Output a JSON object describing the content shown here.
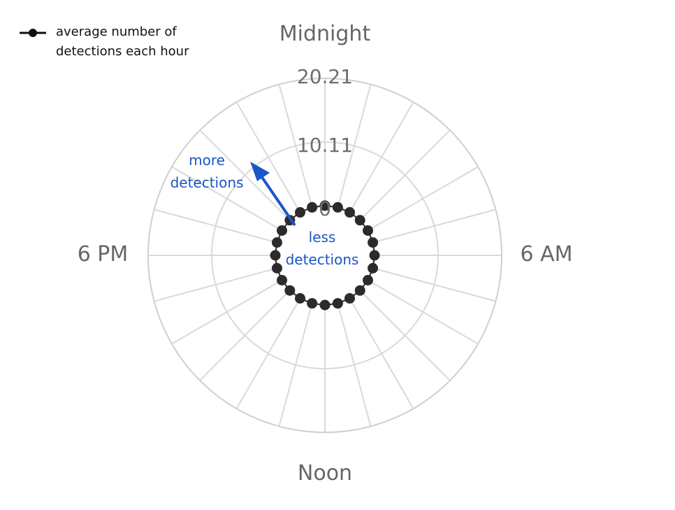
{
  "legend": {
    "label": "average number of\ndetections each hour"
  },
  "chart_data": {
    "type": "radar",
    "angular_labels": {
      "top": "Midnight",
      "right": "6 AM",
      "bottom": "Noon",
      "left": "6 PM"
    },
    "radial_ticks": [
      "20.21",
      "10.11",
      "0"
    ],
    "radial_range": [
      0,
      20.21
    ],
    "hours": [
      0,
      1,
      2,
      3,
      4,
      5,
      6,
      7,
      8,
      9,
      10,
      11,
      12,
      13,
      14,
      15,
      16,
      17,
      18,
      19,
      20,
      21,
      22,
      23
    ],
    "series": [
      {
        "name": "average number of detections each hour",
        "values": [
          0,
          0,
          0,
          0,
          0,
          0,
          0,
          0,
          0,
          0,
          0,
          0,
          0,
          0,
          0,
          0,
          0,
          0,
          0,
          0,
          0,
          0,
          0,
          0
        ]
      }
    ],
    "grid": true,
    "legend_position": "top-left",
    "annotations": {
      "outer": "more\ndetections",
      "inner": "less\ndetections"
    },
    "colors": {
      "series": "#2b2b2b",
      "grid": "#d9d9d9",
      "outer_ring": "#cfcfcf",
      "annotation": "#1a56c7",
      "labels": "#666666"
    }
  }
}
